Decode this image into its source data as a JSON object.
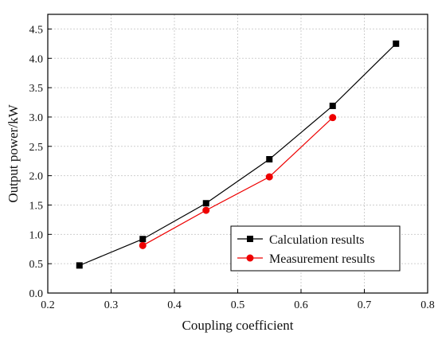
{
  "chart_data": {
    "type": "line",
    "xlabel": "Coupling coefficient",
    "ylabel": "Output power/kW",
    "xlim": [
      0.2,
      0.8
    ],
    "ylim": [
      0.0,
      4.75
    ],
    "xticks": [
      "0.2",
      "0.3",
      "0.4",
      "0.5",
      "0.6",
      "0.7",
      "0.8"
    ],
    "yticks": [
      "0.0",
      "0.5",
      "1.0",
      "1.5",
      "2.0",
      "2.5",
      "3.0",
      "3.5",
      "4.0",
      "4.5"
    ],
    "grid": true,
    "legend_position": "bottom-right",
    "series": [
      {
        "name": "Calculation results",
        "color": "#000000",
        "marker": "square",
        "x": [
          0.25,
          0.35,
          0.45,
          0.55,
          0.65,
          0.75
        ],
        "y": [
          0.47,
          0.92,
          1.53,
          2.28,
          3.19,
          4.25
        ]
      },
      {
        "name": "Measurement results",
        "color": "#ee0000",
        "marker": "circle",
        "x": [
          0.35,
          0.45,
          0.55,
          0.65
        ],
        "y": [
          0.81,
          1.41,
          1.98,
          2.99
        ]
      }
    ]
  }
}
